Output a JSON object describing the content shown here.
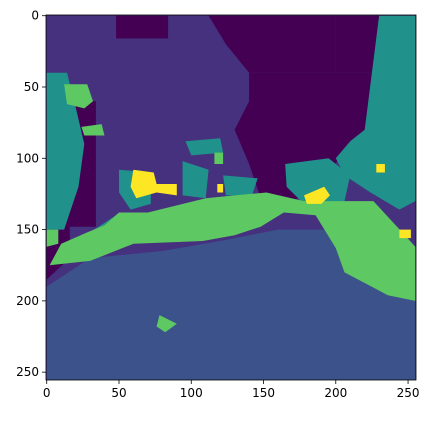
{
  "chart_data": {
    "type": "heatmap",
    "title": "",
    "xlabel": "",
    "ylabel": "",
    "xlim": [
      -0.5,
      255.5
    ],
    "ylim": [
      255.5,
      -0.5
    ],
    "x_ticks": [
      0,
      50,
      100,
      150,
      200,
      250
    ],
    "y_ticks": [
      0,
      50,
      100,
      150,
      200,
      250
    ],
    "grid": false,
    "colormap": "viridis",
    "class_colors": {
      "1": "#440154",
      "2": "#3b528b",
      "3": "#21918c",
      "4": "#5ec962",
      "5": "#fde725",
      "bg": "#46317e"
    },
    "regions": [
      {
        "class": 1,
        "points": [
          [
            38,
            0
          ],
          [
            84,
            0
          ],
          [
            84,
            16
          ],
          [
            48,
            16
          ],
          [
            48,
            0
          ]
        ]
      },
      {
        "class": 1,
        "points": [
          [
            112,
            0
          ],
          [
            200,
            0
          ],
          [
            200,
            40
          ],
          [
            140,
            40
          ],
          [
            124,
            20
          ]
        ]
      },
      {
        "class": 1,
        "points": [
          [
            200,
            0
          ],
          [
            235,
            0
          ],
          [
            230,
            40
          ],
          [
            200,
            40
          ]
        ]
      },
      {
        "class": 1,
        "points": [
          [
            140,
            40
          ],
          [
            230,
            40
          ],
          [
            220,
            80
          ],
          [
            196,
            108
          ],
          [
            160,
            140
          ],
          [
            154,
            140
          ],
          [
            147,
            125
          ],
          [
            140,
            104
          ],
          [
            130,
            80
          ],
          [
            140,
            60
          ]
        ]
      },
      {
        "class": 1,
        "points": [
          [
            0,
            60
          ],
          [
            34,
            60
          ],
          [
            34,
            148
          ],
          [
            16,
            148
          ],
          [
            16,
            170
          ],
          [
            0,
            185
          ],
          [
            0,
            110
          ]
        ]
      },
      {
        "class": 3,
        "points": [
          [
            230,
            0
          ],
          [
            255,
            0
          ],
          [
            255,
            130
          ],
          [
            244,
            136
          ],
          [
            224,
            124
          ],
          [
            206,
            112
          ],
          [
            200,
            100
          ],
          [
            210,
            88
          ],
          [
            220,
            80
          ]
        ]
      },
      {
        "class": 3,
        "points": [
          [
            0,
            40
          ],
          [
            14,
            40
          ],
          [
            20,
            64
          ],
          [
            26,
            90
          ],
          [
            22,
            120
          ],
          [
            12,
            150
          ],
          [
            0,
            150
          ]
        ]
      },
      {
        "class": 3,
        "points": [
          [
            165,
            104
          ],
          [
            195,
            100
          ],
          [
            210,
            112
          ],
          [
            206,
            130
          ],
          [
            194,
            136
          ],
          [
            176,
            130
          ],
          [
            166,
            120
          ]
        ]
      },
      {
        "class": 3,
        "points": [
          [
            50,
            108
          ],
          [
            72,
            110
          ],
          [
            72,
            132
          ],
          [
            58,
            136
          ],
          [
            50,
            124
          ]
        ]
      },
      {
        "class": 3,
        "points": [
          [
            94,
            102
          ],
          [
            112,
            108
          ],
          [
            110,
            128
          ],
          [
            94,
            126
          ]
        ]
      },
      {
        "class": 3,
        "points": [
          [
            96,
            88
          ],
          [
            120,
            86
          ],
          [
            122,
            96
          ],
          [
            100,
            98
          ]
        ]
      },
      {
        "class": 3,
        "points": [
          [
            122,
            112
          ],
          [
            146,
            114
          ],
          [
            142,
            126
          ],
          [
            124,
            126
          ]
        ]
      },
      {
        "class": 3,
        "points": [
          [
            18,
            160
          ],
          [
            48,
            140
          ],
          [
            30,
            160
          ]
        ]
      },
      {
        "class": 2,
        "points": [
          [
            0,
            190
          ],
          [
            30,
            170
          ],
          [
            80,
            165
          ],
          [
            120,
            158
          ],
          [
            160,
            150
          ],
          [
            200,
            150
          ],
          [
            240,
            160
          ],
          [
            255,
            180
          ],
          [
            255,
            256
          ],
          [
            0,
            256
          ]
        ]
      },
      {
        "class": 4,
        "points": [
          [
            2,
            175
          ],
          [
            10,
            160
          ],
          [
            28,
            152
          ],
          [
            40,
            147
          ],
          [
            50,
            138
          ],
          [
            70,
            138
          ],
          [
            110,
            128
          ],
          [
            130,
            126
          ],
          [
            152,
            124
          ],
          [
            178,
            130
          ],
          [
            198,
            130
          ],
          [
            226,
            130
          ],
          [
            246,
            152
          ],
          [
            255,
            162
          ],
          [
            255,
            200
          ],
          [
            236,
            196
          ],
          [
            206,
            180
          ],
          [
            200,
            163
          ],
          [
            186,
            140
          ],
          [
            164,
            138
          ],
          [
            148,
            148
          ],
          [
            130,
            154
          ],
          [
            108,
            158
          ],
          [
            60,
            160
          ],
          [
            30,
            172
          ]
        ]
      },
      {
        "class": 4,
        "points": [
          [
            12,
            48
          ],
          [
            28,
            48
          ],
          [
            32,
            60
          ],
          [
            26,
            65
          ],
          [
            14,
            62
          ]
        ]
      },
      {
        "class": 4,
        "points": [
          [
            24,
            78
          ],
          [
            38,
            76
          ],
          [
            40,
            84
          ],
          [
            26,
            84
          ]
        ]
      },
      {
        "class": 4,
        "points": [
          [
            106,
            134
          ],
          [
            124,
            132
          ],
          [
            126,
            150
          ],
          [
            108,
            152
          ]
        ]
      },
      {
        "class": 4,
        "points": [
          [
            116,
            96
          ],
          [
            122,
            96
          ],
          [
            122,
            104
          ],
          [
            116,
            104
          ]
        ]
      },
      {
        "class": 4,
        "points": [
          [
            78,
            210
          ],
          [
            90,
            216
          ],
          [
            82,
            222
          ],
          [
            76,
            218
          ]
        ]
      },
      {
        "class": 4,
        "points": [
          [
            0,
            150
          ],
          [
            8,
            150
          ],
          [
            8,
            160
          ],
          [
            0,
            162
          ]
        ]
      },
      {
        "class": 5,
        "points": [
          [
            60,
            108
          ],
          [
            74,
            110
          ],
          [
            76,
            118
          ],
          [
            90,
            118
          ],
          [
            90,
            126
          ],
          [
            76,
            124
          ],
          [
            62,
            128
          ],
          [
            58,
            120
          ]
        ]
      },
      {
        "class": 5,
        "points": [
          [
            118,
            118
          ],
          [
            122,
            118
          ],
          [
            122,
            124
          ],
          [
            118,
            124
          ]
        ]
      },
      {
        "class": 5,
        "points": [
          [
            178,
            126
          ],
          [
            192,
            120
          ],
          [
            196,
            126
          ],
          [
            190,
            132
          ],
          [
            180,
            132
          ]
        ]
      },
      {
        "class": 5,
        "points": [
          [
            228,
            104
          ],
          [
            234,
            104
          ],
          [
            234,
            110
          ],
          [
            228,
            110
          ]
        ]
      },
      {
        "class": 5,
        "points": [
          [
            244,
            150
          ],
          [
            252,
            150
          ],
          [
            252,
            156
          ],
          [
            244,
            156
          ]
        ]
      }
    ]
  }
}
